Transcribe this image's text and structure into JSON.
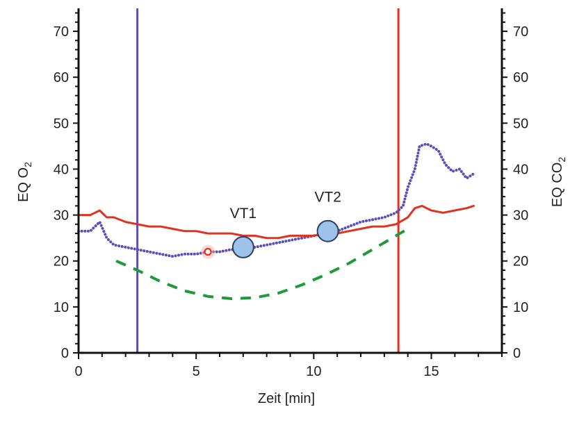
{
  "chart_data": {
    "type": "line",
    "xlabel": "Zeit [min]",
    "ylabel_left": {
      "text": "EQ O",
      "sub": "2"
    },
    "ylabel_right": {
      "text": "EQ CO",
      "sub": "2"
    },
    "xlim": [
      0,
      18
    ],
    "ylim": [
      0,
      75
    ],
    "xticks": [
      0,
      5,
      10,
      15
    ],
    "yticks": [
      0,
      10,
      20,
      30,
      40,
      50,
      60,
      70
    ],
    "grid": false,
    "colors": {
      "eq_o2": "#5a4fb8",
      "eq_co2": "#e0331f",
      "fit": "#1f9a3a",
      "threshold_left": "#5a4fb8",
      "threshold_right": "#e0331f",
      "marker": "#9fc2ea"
    },
    "series": [
      {
        "key": "eq_o2",
        "style": "dotted",
        "values": [
          [
            0.0,
            26.5
          ],
          [
            0.5,
            26.5
          ],
          [
            0.9,
            28.5
          ],
          [
            1.2,
            25.0
          ],
          [
            1.5,
            23.5
          ],
          [
            2.0,
            23.0
          ],
          [
            2.5,
            22.5
          ],
          [
            3.0,
            22.0
          ],
          [
            3.5,
            21.5
          ],
          [
            4.0,
            21.0
          ],
          [
            4.5,
            21.5
          ],
          [
            5.0,
            21.5
          ],
          [
            5.5,
            22.0
          ],
          [
            6.0,
            22.0
          ],
          [
            6.5,
            22.5
          ],
          [
            7.0,
            22.5
          ],
          [
            7.5,
            23.0
          ],
          [
            8.0,
            23.5
          ],
          [
            8.5,
            24.0
          ],
          [
            9.0,
            24.5
          ],
          [
            9.5,
            25.0
          ],
          [
            10.0,
            25.5
          ],
          [
            10.5,
            26.0
          ],
          [
            11.0,
            26.5
          ],
          [
            11.5,
            27.5
          ],
          [
            12.0,
            28.5
          ],
          [
            12.5,
            29.0
          ],
          [
            13.0,
            29.5
          ],
          [
            13.5,
            30.5
          ],
          [
            13.8,
            32.0
          ],
          [
            14.0,
            36.0
          ],
          [
            14.3,
            40.0
          ],
          [
            14.5,
            45.0
          ],
          [
            14.8,
            45.5
          ],
          [
            15.0,
            45.0
          ],
          [
            15.3,
            44.0
          ],
          [
            15.6,
            41.0
          ],
          [
            15.9,
            39.5
          ],
          [
            16.2,
            40.0
          ],
          [
            16.5,
            38.0
          ],
          [
            16.8,
            39.0
          ]
        ]
      },
      {
        "key": "eq_co2",
        "style": "solid",
        "values": [
          [
            0.0,
            30.0
          ],
          [
            0.5,
            30.0
          ],
          [
            0.9,
            31.0
          ],
          [
            1.2,
            29.5
          ],
          [
            1.5,
            29.5
          ],
          [
            2.0,
            28.5
          ],
          [
            2.5,
            28.0
          ],
          [
            3.0,
            27.5
          ],
          [
            3.5,
            27.5
          ],
          [
            4.0,
            27.0
          ],
          [
            4.5,
            26.5
          ],
          [
            5.0,
            26.5
          ],
          [
            5.5,
            26.0
          ],
          [
            6.0,
            26.0
          ],
          [
            6.5,
            26.0
          ],
          [
            7.0,
            25.5
          ],
          [
            7.5,
            25.5
          ],
          [
            8.0,
            25.0
          ],
          [
            8.5,
            25.0
          ],
          [
            9.0,
            25.5
          ],
          [
            9.5,
            25.5
          ],
          [
            10.0,
            25.5
          ],
          [
            10.5,
            26.0
          ],
          [
            11.0,
            26.0
          ],
          [
            11.5,
            26.5
          ],
          [
            12.0,
            27.0
          ],
          [
            12.5,
            27.5
          ],
          [
            13.0,
            27.5
          ],
          [
            13.5,
            28.0
          ],
          [
            14.0,
            29.5
          ],
          [
            14.3,
            31.5
          ],
          [
            14.6,
            32.0
          ],
          [
            15.0,
            31.0
          ],
          [
            15.5,
            30.5
          ],
          [
            16.0,
            31.0
          ],
          [
            16.5,
            31.5
          ],
          [
            16.8,
            32.0
          ]
        ]
      },
      {
        "key": "fit",
        "style": "dashed",
        "values": [
          [
            1.6,
            20.0
          ],
          [
            2.5,
            18.0
          ],
          [
            3.5,
            15.5
          ],
          [
            4.5,
            13.5
          ],
          [
            5.5,
            12.3
          ],
          [
            6.5,
            11.8
          ],
          [
            7.5,
            12.0
          ],
          [
            8.5,
            13.0
          ],
          [
            9.5,
            14.8
          ],
          [
            10.5,
            17.0
          ],
          [
            11.5,
            19.5
          ],
          [
            12.5,
            22.5
          ],
          [
            13.5,
            25.5
          ],
          [
            14.0,
            27.0
          ]
        ]
      }
    ],
    "thresholds": [
      {
        "key": "threshold_left",
        "x": 2.5
      },
      {
        "key": "threshold_right",
        "x": 13.6
      }
    ],
    "markers": [
      {
        "label": "VT1",
        "x": 7.0,
        "y": 23.0
      },
      {
        "label": "VT2",
        "x": 10.6,
        "y": 26.5
      }
    ],
    "highlight_point": {
      "x": 5.5,
      "y": 22.0
    }
  }
}
